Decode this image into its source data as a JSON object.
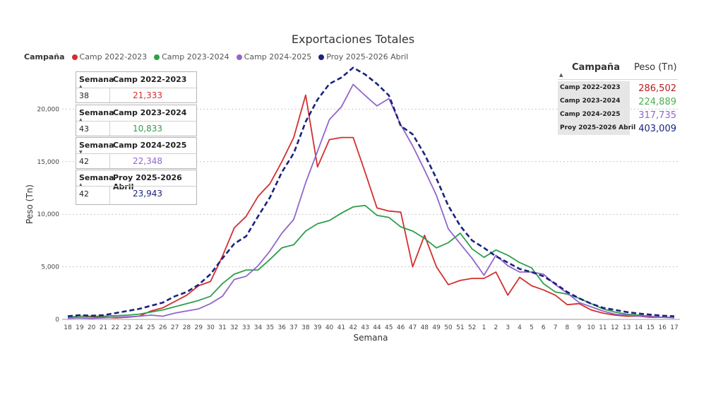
{
  "title": "Exportaciones Totales",
  "legend": {
    "title": "Campaña",
    "items": [
      {
        "label": "Camp 2022-2023",
        "color": "#d32f2f"
      },
      {
        "label": "Camp 2023-2024",
        "color": "#2e9e4c"
      },
      {
        "label": "Camp 2024-2025",
        "color": "#9166cc"
      },
      {
        "label": "Proy 2025-2026 Abril",
        "color": "#1a237e"
      }
    ]
  },
  "mini_tables": [
    {
      "col1": "Semana",
      "col2": "Camp 2022-2023",
      "week": "38",
      "value": "21,333",
      "color": "#d32f2f",
      "sort": "▲"
    },
    {
      "col1": "Semana",
      "col2": "Camp 2023-2024",
      "week": "43",
      "value": "10,833",
      "color": "#2e9e4c",
      "sort": "▲"
    },
    {
      "col1": "Semana",
      "col2": "Camp 2024-2025",
      "week": "42",
      "value": "22,348",
      "color": "#9166cc",
      "sort": "▼"
    },
    {
      "col1": "Semana",
      "col2": "Proy 2025-2026 Abril",
      "week": "42",
      "value": "23,943",
      "color": "#1a237e",
      "sort": "▲"
    }
  ],
  "summary": {
    "header_campaign": "Campaña",
    "header_weight": "Peso (Tn)",
    "sort": "▲",
    "rows": [
      {
        "campaign": "Camp 2022-2023",
        "weight": "286,502",
        "color": "#b71c1c"
      },
      {
        "campaign": "Camp 2023-2024",
        "weight": "224,889",
        "color": "#4caf50"
      },
      {
        "campaign": "Camp 2024-2025",
        "weight": "317,735",
        "color": "#9166cc"
      },
      {
        "campaign": "Proy 2025-2026 Abril",
        "weight": "403,009",
        "color": "#1a237e"
      }
    ]
  },
  "chart_data": {
    "type": "line",
    "title": "Exportaciones Totales",
    "xlabel": "Semana",
    "ylabel": "Peso (Tn)",
    "categories": [
      "18",
      "19",
      "20",
      "21",
      "22",
      "23",
      "24",
      "25",
      "26",
      "27",
      "28",
      "29",
      "30",
      "31",
      "32",
      "33",
      "34",
      "35",
      "36",
      "37",
      "38",
      "39",
      "40",
      "41",
      "42",
      "43",
      "44",
      "45",
      "46",
      "47",
      "48",
      "49",
      "50",
      "51",
      "52",
      "1",
      "2",
      "3",
      "4",
      "5",
      "6",
      "7",
      "8",
      "9",
      "10",
      "11",
      "12",
      "13",
      "14",
      "15",
      "16",
      "17"
    ],
    "ylim": [
      0,
      25000
    ],
    "yticks": [
      0,
      5000,
      10000,
      15000,
      20000
    ],
    "ytick_labels": [
      "0",
      "5,000",
      "10,000",
      "15,000",
      "20,000"
    ],
    "grid": true,
    "legend_position": "top-left",
    "series": [
      {
        "name": "Camp 2022-2023",
        "color": "#d32f2f",
        "dashed": false,
        "values": [
          200,
          300,
          250,
          200,
          150,
          200,
          300,
          800,
          1100,
          1700,
          2300,
          3200,
          3600,
          6000,
          8700,
          9800,
          11700,
          12900,
          15000,
          17300,
          21333,
          14500,
          17100,
          17300,
          17300,
          14000,
          10600,
          10300,
          10200,
          5000,
          8000,
          5000,
          3300,
          3700,
          3900,
          3900,
          4500,
          2300,
          4000,
          3200,
          2800,
          2300,
          1400,
          1500,
          900,
          600,
          400,
          300,
          300,
          200,
          200,
          200
        ]
      },
      {
        "name": "Camp 2023-2024",
        "color": "#2e9e4c",
        "dashed": false,
        "values": [
          200,
          300,
          300,
          300,
          350,
          400,
          500,
          700,
          900,
          1200,
          1500,
          1800,
          2200,
          3400,
          4300,
          4700,
          4700,
          5700,
          6800,
          7100,
          8400,
          9100,
          9400,
          10100,
          10700,
          10833,
          9900,
          9700,
          8800,
          8400,
          7700,
          6800,
          7300,
          8200,
          6700,
          5900,
          6600,
          6100,
          5400,
          4900,
          3400,
          2600,
          2400,
          2000,
          1500,
          1000,
          700,
          500,
          400,
          300,
          200,
          150
        ]
      },
      {
        "name": "Camp 2024-2025",
        "color": "#9166cc",
        "dashed": false,
        "values": [
          100,
          150,
          100,
          150,
          200,
          250,
          300,
          400,
          300,
          600,
          800,
          1000,
          1500,
          2200,
          3800,
          4100,
          5100,
          6500,
          8200,
          9500,
          13000,
          16000,
          19000,
          20200,
          22348,
          21300,
          20300,
          21000,
          18500,
          16500,
          14200,
          11800,
          8600,
          7200,
          5800,
          4200,
          6100,
          5100,
          4500,
          4500,
          4300,
          3300,
          2500,
          1600,
          1200,
          800,
          500,
          400,
          300,
          300,
          200,
          150
        ]
      },
      {
        "name": "Proy 2025-2026 Abril",
        "color": "#1a237e",
        "dashed": true,
        "values": [
          300,
          400,
          350,
          400,
          600,
          800,
          1000,
          1300,
          1600,
          2200,
          2600,
          3300,
          4300,
          5800,
          7200,
          7900,
          9800,
          11600,
          14000,
          15800,
          18800,
          20900,
          22400,
          23000,
          23943,
          23300,
          22400,
          21300,
          18400,
          17600,
          15700,
          13400,
          10800,
          8900,
          7500,
          6800,
          6000,
          5400,
          4800,
          4500,
          4100,
          3400,
          2600,
          2000,
          1500,
          1100,
          900,
          700,
          550,
          450,
          350,
          300
        ]
      }
    ]
  }
}
